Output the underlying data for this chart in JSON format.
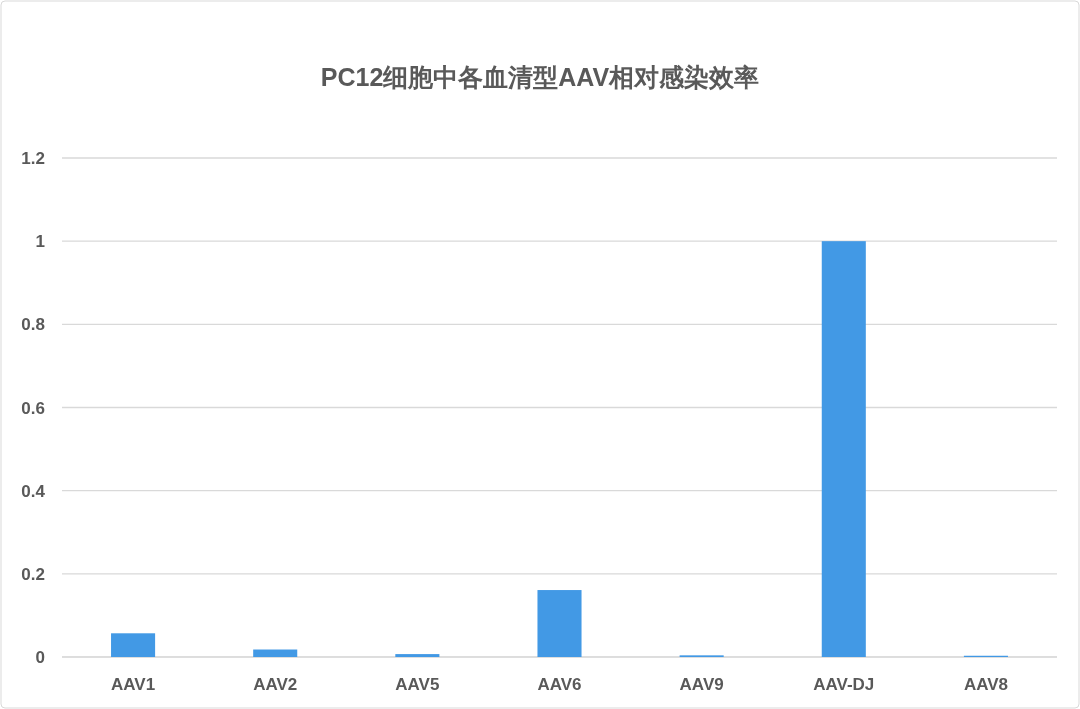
{
  "chart_data": {
    "type": "bar",
    "title": "PC12细胞中各血清型AAV相对感染效率",
    "categories": [
      "AAV1",
      "AAV2",
      "AAV5",
      "AAV6",
      "AAV9",
      "AAV-DJ",
      "AAV8"
    ],
    "values": [
      0.057,
      0.018,
      0.007,
      0.161,
      0.004,
      1.0,
      0.003
    ],
    "color": "#4299e5",
    "ylim": [
      0,
      1.2
    ],
    "yticks": [
      0,
      0.2,
      0.4,
      0.6,
      0.8,
      1,
      1.2
    ],
    "grid": "y"
  }
}
